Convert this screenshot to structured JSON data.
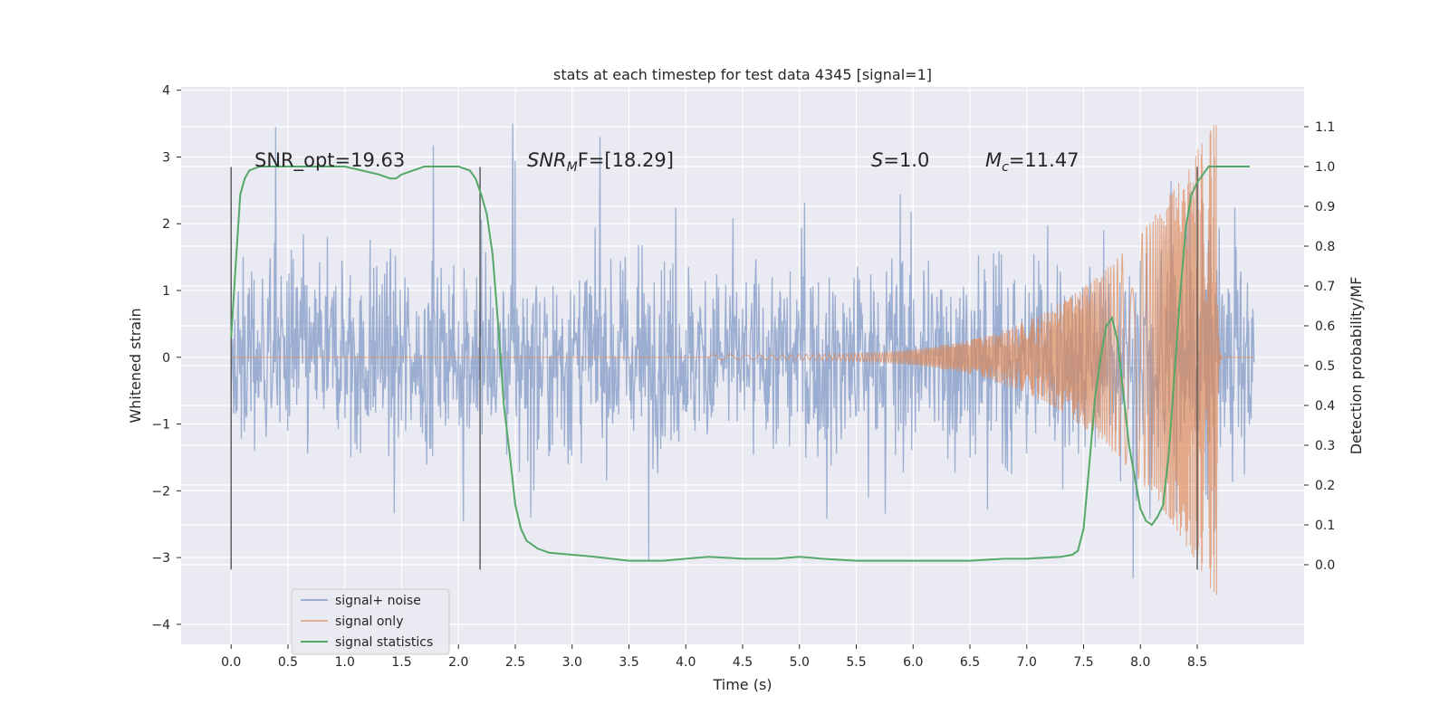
{
  "chart_data": {
    "type": "line",
    "title": "stats at each timestep for test data 4345 [signal=1]",
    "xlabel": "Time (s)",
    "ylabel_left": "Whitened strain",
    "ylabel_right": "Detection probability/MF",
    "xlim": [
      -0.44,
      9.44
    ],
    "ylim_left": [
      -4.3,
      4.05
    ],
    "ylim_right": [
      -0.2,
      1.2
    ],
    "x_ticks": [
      "0.0",
      "0.5",
      "1.0",
      "1.5",
      "2.0",
      "2.5",
      "3.0",
      "3.5",
      "4.0",
      "4.5",
      "5.0",
      "5.5",
      "6.0",
      "6.5",
      "7.0",
      "7.5",
      "8.0",
      "8.5"
    ],
    "y_ticks_left": [
      "4",
      "3",
      "2",
      "1",
      "0",
      "−1",
      "−2",
      "−3",
      "−4"
    ],
    "y_ticks_right": [
      "1.1",
      "1.0",
      "0.9",
      "0.8",
      "0.7",
      "0.6",
      "0.5",
      "0.4",
      "0.3",
      "0.2",
      "0.1",
      "0.0"
    ],
    "grid": true,
    "annotations": {
      "snr_opt": "SNR_opt=19.63",
      "snr_mf_a": "SNR",
      "snr_mf_sub": "M",
      "snr_mf_b": "F=[18.29]",
      "s_var": "S",
      "s_val": "=1.0",
      "mc_var": "M",
      "mc_sub": "c",
      "mc_val": "=11.47"
    },
    "vertical_markers_x": [
      0.0,
      2.19,
      8.5
    ],
    "legend": {
      "position": "lower-left",
      "entries": [
        "signal+ noise",
        "signal only",
        "signal statistics"
      ]
    },
    "series": [
      {
        "name": "signal+ noise",
        "axis": "left",
        "color": "#4c72b0",
        "description_range": [
          -3.9,
          3.65
        ]
      },
      {
        "name": "signal only",
        "axis": "left",
        "color": "#dd8452",
        "peak_time": 8.67,
        "peak_value": 3.65
      },
      {
        "name": "signal statistics",
        "axis": "right",
        "color": "#55a868",
        "x": [
          0.0,
          0.04,
          0.08,
          0.12,
          0.16,
          0.25,
          0.5,
          1.0,
          1.15,
          1.3,
          1.4,
          1.45,
          1.5,
          1.6,
          1.7,
          1.8,
          2.0,
          2.1,
          2.15,
          2.2,
          2.25,
          2.3,
          2.35,
          2.4,
          2.45,
          2.5,
          2.55,
          2.6,
          2.7,
          2.8,
          3.0,
          3.2,
          3.5,
          3.8,
          4.0,
          4.2,
          4.5,
          4.8,
          5.0,
          5.2,
          5.5,
          5.8,
          6.0,
          6.2,
          6.5,
          6.8,
          7.0,
          7.3,
          7.4,
          7.45,
          7.5,
          7.55,
          7.6,
          7.65,
          7.7,
          7.75,
          7.8,
          7.85,
          7.9,
          7.95,
          8.0,
          8.05,
          8.1,
          8.15,
          8.2,
          8.25,
          8.3,
          8.35,
          8.4,
          8.45,
          8.5,
          8.55,
          8.6,
          8.65,
          8.7,
          8.8,
          8.9,
          8.96
        ],
        "y": [
          0.57,
          0.75,
          0.93,
          0.97,
          0.99,
          1.0,
          1.0,
          1.0,
          0.99,
          0.98,
          0.97,
          0.97,
          0.98,
          0.99,
          1.0,
          1.0,
          1.0,
          0.99,
          0.97,
          0.93,
          0.88,
          0.78,
          0.6,
          0.4,
          0.28,
          0.15,
          0.09,
          0.06,
          0.04,
          0.03,
          0.025,
          0.02,
          0.01,
          0.01,
          0.015,
          0.02,
          0.015,
          0.015,
          0.02,
          0.015,
          0.01,
          0.01,
          0.01,
          0.01,
          0.01,
          0.015,
          0.015,
          0.02,
          0.025,
          0.035,
          0.09,
          0.25,
          0.42,
          0.52,
          0.6,
          0.62,
          0.56,
          0.43,
          0.3,
          0.22,
          0.14,
          0.11,
          0.1,
          0.12,
          0.15,
          0.28,
          0.48,
          0.68,
          0.85,
          0.93,
          0.96,
          0.98,
          1.0,
          1.0,
          1.0,
          1.0,
          1.0,
          1.0
        ]
      }
    ]
  }
}
